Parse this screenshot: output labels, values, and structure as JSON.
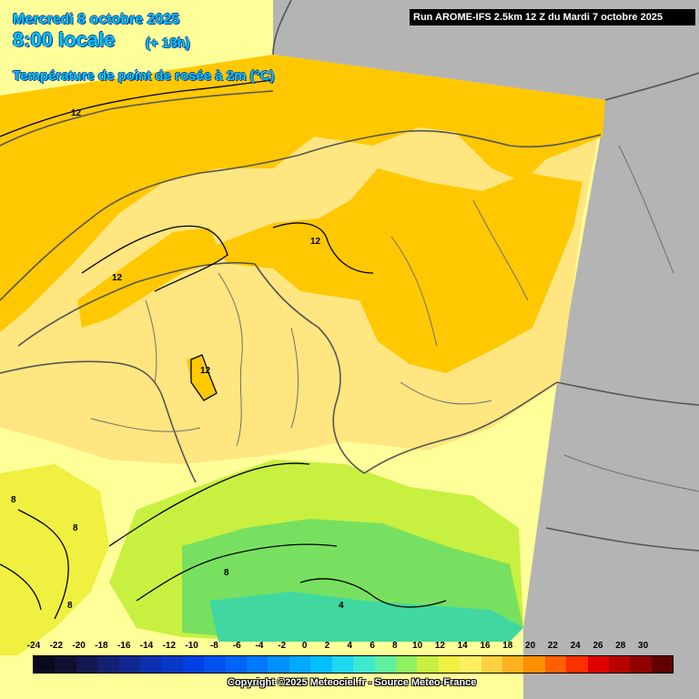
{
  "header": {
    "date": "Mercredi 8 octobre 2025",
    "time": "8:00 locale",
    "offset": "(+ 18h)",
    "parameter": "Température de point de rosée à 2m (°C)"
  },
  "run_info": "Run AROME-IFS 2.5km 12 Z du Mardi 7 octobre 2025",
  "copyright": "Copyright ©2025 Meteociel.fr - Source Meteo-France",
  "contour_labels": [
    "12",
    "12",
    "12",
    "12",
    "8",
    "8",
    "8",
    "8",
    "4"
  ],
  "legend": {
    "ticks": [
      "-24",
      "-22",
      "-20",
      "-18",
      "-16",
      "-14",
      "-12",
      "-10",
      "-8",
      "-6",
      "-4",
      "-2",
      "0",
      "2",
      "4",
      "6",
      "8",
      "10",
      "12",
      "14",
      "16",
      "18",
      "20",
      "22",
      "24",
      "26",
      "28",
      "30"
    ],
    "colors": [
      "#0a0a1e",
      "#101030",
      "#141850",
      "#142070",
      "#102890",
      "#0c30b0",
      "#0838c8",
      "#0040e0",
      "#0050f0",
      "#0064f8",
      "#0078ff",
      "#0090ff",
      "#00a8ff",
      "#00c0ff",
      "#20d8f0",
      "#40e8d0",
      "#60f0a0",
      "#90f060",
      "#c8f040",
      "#f0f040",
      "#fff060",
      "#ffd040",
      "#ffb020",
      "#ff9000",
      "#ff6000",
      "#ff3000",
      "#e00000",
      "#b80000",
      "#900000",
      "#600000"
    ]
  }
}
